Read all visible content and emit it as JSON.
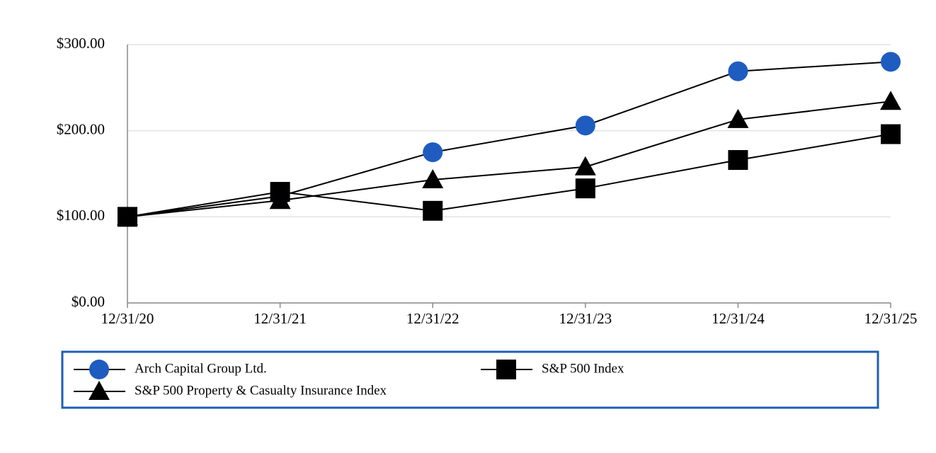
{
  "chart_data": {
    "type": "line",
    "categories": [
      "12/31/20",
      "12/31/21",
      "12/31/22",
      "12/31/23",
      "12/31/24",
      "12/31/25"
    ],
    "series": [
      {
        "name": "Arch Capital Group Ltd.",
        "color": "#1f5cc0",
        "marker": "circle",
        "values": [
          100,
          124,
          175,
          206,
          269,
          280
        ]
      },
      {
        "name": "S&P 500 Index",
        "color": "#000000",
        "marker": "square",
        "values": [
          100,
          129,
          107,
          133,
          166,
          196
        ]
      },
      {
        "name": "S&P 500 Property & Casualty Insurance Index",
        "color": "#000000",
        "marker": "triangle",
        "values": [
          100,
          119,
          143,
          158,
          213,
          234
        ]
      }
    ],
    "ylim": [
      0,
      300
    ],
    "yticks": [
      {
        "value": 0,
        "label": "$0.00"
      },
      {
        "value": 100,
        "label": "$100.00"
      },
      {
        "value": 200,
        "label": "$200.00"
      },
      {
        "value": 300,
        "label": "$300.00"
      }
    ],
    "grid": true,
    "legend": "bottom"
  }
}
